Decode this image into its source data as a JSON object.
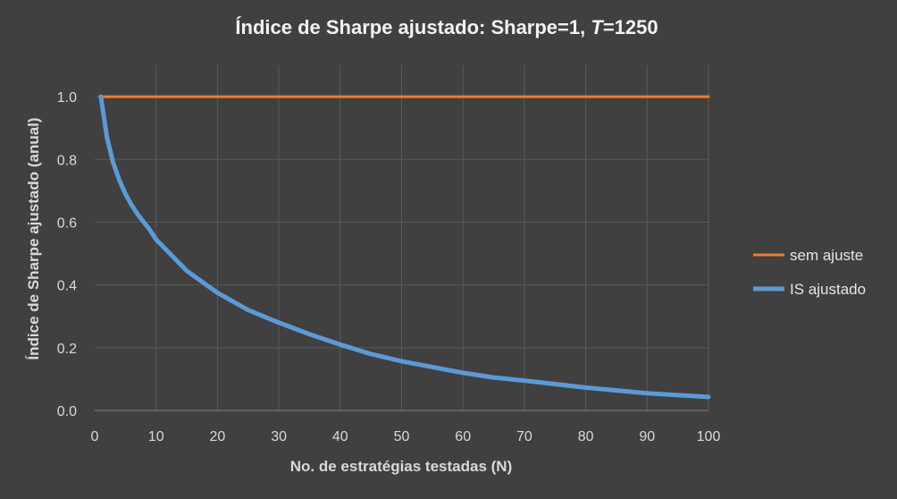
{
  "chart_data": {
    "type": "line",
    "title": "Índice de Sharpe ajustado:  Sharpe=1, T=1250",
    "title_parts": [
      "Índice de Sharpe ajustado:  Sharpe=1, ",
      "T",
      "=1250"
    ],
    "xlabel": "No. de estratégias testadas (N)",
    "ylabel": "Índice de Sharpe ajustado (anual)",
    "xlim": [
      0,
      100
    ],
    "ylim": [
      0,
      1.1
    ],
    "xticks": [
      0,
      10,
      20,
      30,
      40,
      50,
      60,
      70,
      80,
      90,
      100
    ],
    "yticks": [
      0.0,
      0.2,
      0.4,
      0.6,
      0.8,
      1.0
    ],
    "ytick_labels": [
      "0.0",
      "0.2",
      "0.4",
      "0.6",
      "0.8",
      "1.0"
    ],
    "grid": true,
    "legend_position": "right",
    "series": [
      {
        "name": "sem ajuste",
        "color": "#ed7d31",
        "x": [
          1,
          100
        ],
        "y": [
          1.0,
          1.0
        ]
      },
      {
        "name": "IS ajustado",
        "color": "#5b9bd5",
        "x": [
          1,
          2,
          3,
          4,
          5,
          6,
          7,
          8,
          9,
          10,
          12,
          15,
          20,
          25,
          30,
          35,
          40,
          45,
          50,
          60,
          65,
          70,
          80,
          90,
          100
        ],
        "y": [
          1.0,
          0.87,
          0.79,
          0.735,
          0.69,
          0.655,
          0.625,
          0.6,
          0.575,
          0.545,
          0.505,
          0.445,
          0.375,
          0.32,
          0.28,
          0.243,
          0.21,
          0.18,
          0.157,
          0.12,
          0.105,
          0.095,
          0.073,
          0.055,
          0.043
        ]
      }
    ]
  }
}
